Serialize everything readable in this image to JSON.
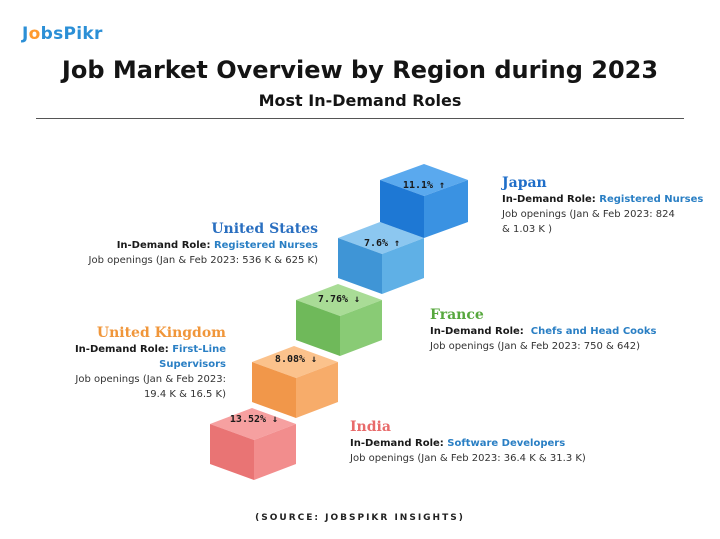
{
  "brand": {
    "logo_prefix": "J",
    "logo_dot": "o",
    "logo_suffix": "bsPikr"
  },
  "title": "Job Market Overview by Region during 2023",
  "subtitle": "Most In-Demand Roles",
  "source": "(SOURCE: JOBSPIKR INSIGHTS)",
  "colors": {
    "japan": "#2f8fe0",
    "us": "#4aa3e0",
    "france": "#7cc46a",
    "uk": "#f7a65a",
    "india": "#f08585"
  },
  "regions": [
    {
      "name": "Japan",
      "color": "#1f6ec9",
      "role_label": "In-Demand Role:",
      "role": "Registered Nurses",
      "openings_1": "Job openings (Jan & Feb 2023: 824",
      "openings_2": "& 1.03 K )",
      "change": "11.1% ↑"
    },
    {
      "name": "United States",
      "color": "#2a6fc0",
      "role_label": "In-Demand Role:",
      "role": "Registered Nurses",
      "openings_1": "Job openings (Jan & Feb 2023: 536 K & 625 K)",
      "openings_2": "",
      "change": "7.6% ↑"
    },
    {
      "name": "France",
      "color": "#57a83e",
      "role_label": "In-Demand Role:",
      "role": "Chefs and Head Cooks",
      "openings_1": "Job openings (Jan & Feb 2023: 750 & 642)",
      "openings_2": "",
      "change": "7.76% ↓"
    },
    {
      "name": "United Kingdom",
      "color": "#f0963a",
      "role_label": "In-Demand Role:",
      "role": "First-Line Supervisors",
      "openings_1": "Job openings (Jan & Feb 2023:",
      "openings_2": "19.4 K & 16.5 K)",
      "change": "8.08% ↓"
    },
    {
      "name": "India",
      "color": "#e86a6a",
      "role_label": "In-Demand Role:",
      "role": "Software Developers",
      "openings_1": "Job openings (Jan & Feb 2023: 36.4 K & 31.3 K)",
      "openings_2": "",
      "change": "13.52% ↓"
    }
  ]
}
